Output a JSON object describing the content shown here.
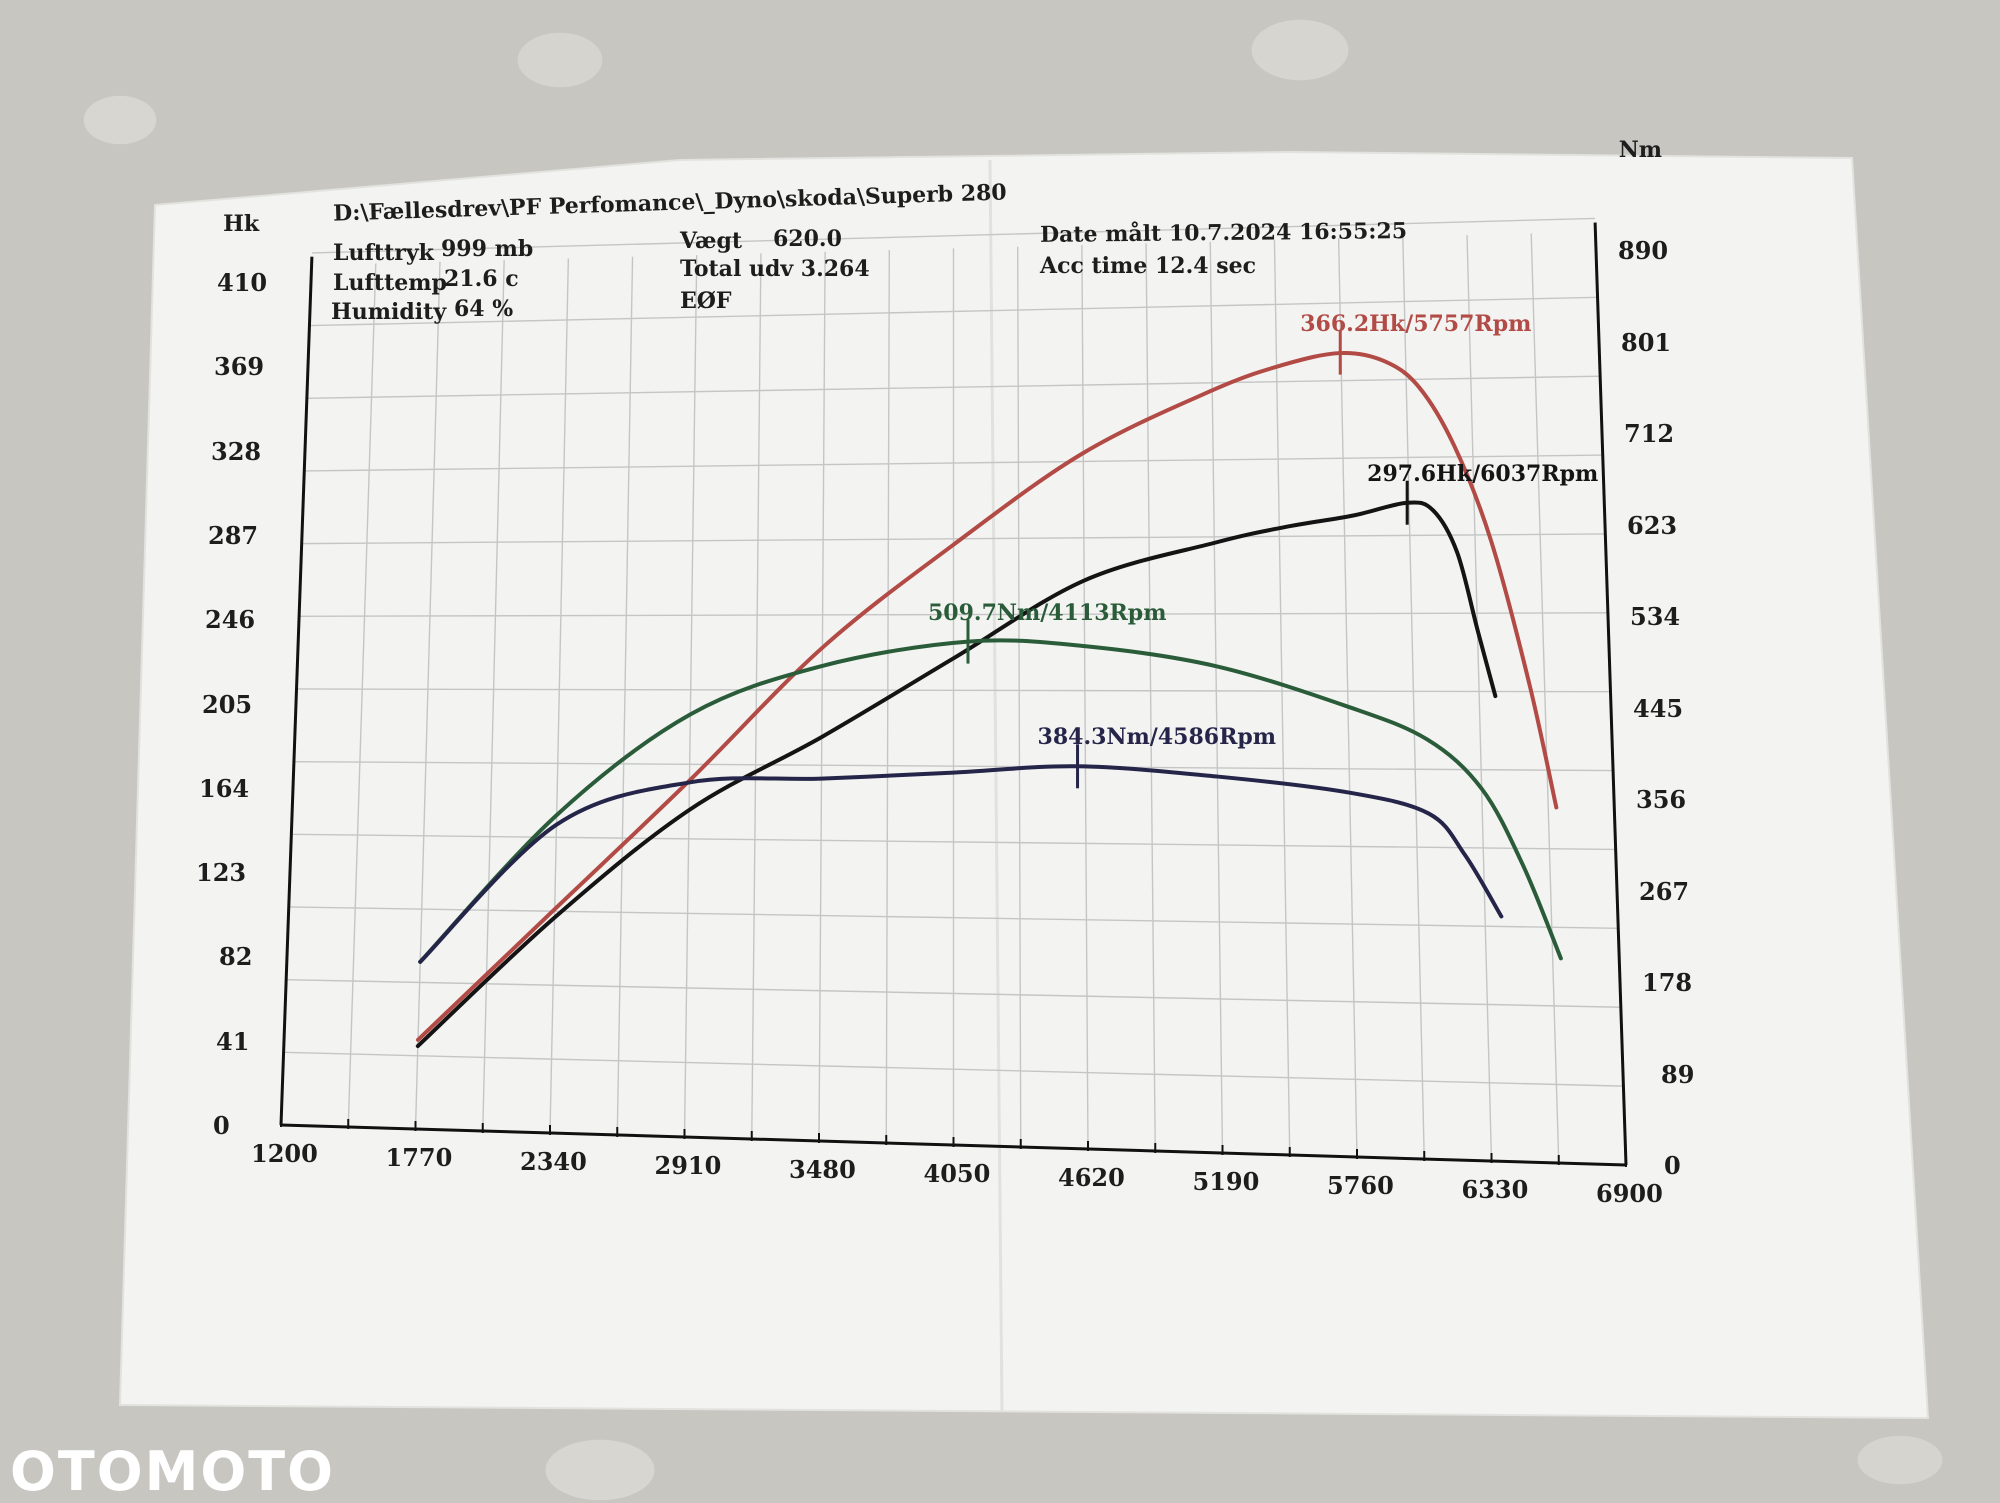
{
  "header": {
    "path": "D:\\Fællesdrev\\PF Perfomance\\_Dyno\\skoda\\Superb 280",
    "lufttryk_label": "Lufttryk",
    "lufttryk_value": "999 mb",
    "lufttemp_label": "Lufttemp",
    "lufttemp_value": "21.6 c",
    "humidity_label": "Humidity",
    "humidity_value": "64 %",
    "vaegt_label": "Vægt",
    "vaegt_value": "620.0",
    "total_udv": "Total udv 3.264",
    "eof": "EØF",
    "date": "Date målt 10.7.2024 16:55:25",
    "acc_time": "Acc time  12.4 sec"
  },
  "watermark": "OTOMOTO",
  "colors": {
    "paper": "#f2f2f0",
    "grid": "#c4c6c6",
    "red": "#b24a45",
    "black": "#141414",
    "green": "#2b5c3a",
    "navy": "#25254a"
  },
  "chart_data": {
    "type": "line",
    "title": "",
    "xlabel": "",
    "ylabel_left": "Hk",
    "ylabel_right": "Nm",
    "xlim": [
      1200,
      6900
    ],
    "ylim_left": [
      0,
      410
    ],
    "ylim_right": [
      0,
      890
    ],
    "x_ticks": [
      "1200",
      "1770",
      "2340",
      "2910",
      "3480",
      "4050",
      "4620",
      "5190",
      "5760",
      "6330",
      "6900"
    ],
    "y_ticks_left": [
      "0",
      "41",
      "82",
      "123",
      "164",
      "205",
      "246",
      "287",
      "328",
      "369",
      "410"
    ],
    "y_ticks_right": [
      "0",
      "89",
      "178",
      "267",
      "356",
      "445",
      "534",
      "623",
      "712",
      "801",
      "890"
    ],
    "grid": true,
    "series": [
      {
        "axis": "left",
        "color": "#b24a45",
        "x": [
          1770,
          2340,
          2910,
          3480,
          4050,
          4620,
          5190,
          5500,
          5757,
          5950,
          6100,
          6250,
          6400,
          6550,
          6650
        ],
        "y": [
          43,
          107,
          169,
          232,
          280,
          322,
          350,
          361,
          366,
          362,
          350,
          323,
          280,
          215,
          160
        ],
        "peak_label": "366.2Hk/5757Rpm",
        "peak_x": 5757,
        "peak_y": 366.2
      },
      {
        "axis": "left",
        "color": "#141414",
        "x": [
          1770,
          2340,
          2910,
          3480,
          4050,
          4620,
          5190,
          5500,
          5800,
          6037,
          6150,
          6250,
          6330,
          6400
        ],
        "y": [
          40,
          103,
          155,
          190,
          227,
          263,
          280,
          287,
          292,
          297.6,
          294,
          275,
          240,
          210
        ],
        "peak_label": "297.6Hk/6037Rpm",
        "peak_x": 6037,
        "peak_y": 297.6
      },
      {
        "axis": "right",
        "color": "#2b5c3a",
        "x": [
          1770,
          2340,
          2910,
          3480,
          4113,
          4620,
          5190,
          5760,
          6100,
          6330,
          6500,
          6650
        ],
        "y": [
          175,
          330,
          435,
          485,
          509.7,
          505,
          485,
          445,
          413,
          365,
          290,
          200
        ],
        "peak_label": "509.7Nm/4113Rpm",
        "peak_x": 4113,
        "peak_y": 509.7
      },
      {
        "axis": "right",
        "color": "#25254a",
        "x": [
          1770,
          2340,
          2910,
          3480,
          4050,
          4586,
          5190,
          5760,
          6100,
          6250,
          6400
        ],
        "y": [
          175,
          320,
          365,
          370,
          377,
          384.3,
          375,
          360,
          340,
          300,
          240
        ],
        "peak_label": "384.3Nm/4586Rpm",
        "peak_x": 4586,
        "peak_y": 384.3
      }
    ]
  }
}
